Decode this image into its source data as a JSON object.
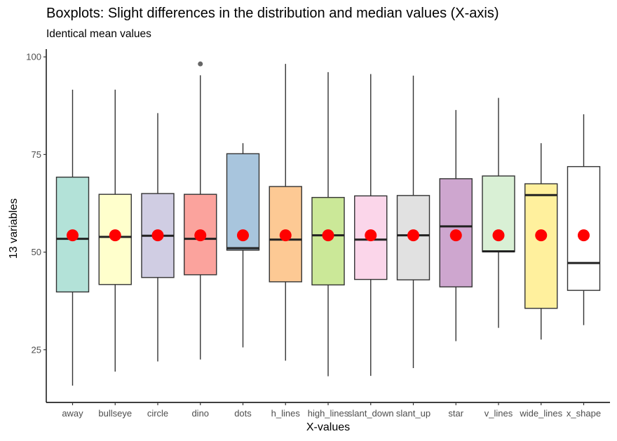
{
  "chart_data": {
    "type": "boxplot",
    "title": "Boxplots: Slight differences in the distribution and median values (X-axis)",
    "subtitle": "Identical mean values",
    "xlabel": "X-values",
    "ylabel": "13 variables",
    "ylim": [
      11.5,
      102
    ],
    "yticks": [
      25,
      50,
      75,
      100
    ],
    "grid": false,
    "legend": "none",
    "categories": [
      "away",
      "bullseye",
      "circle",
      "dino",
      "dots",
      "h_lines",
      "high_lines",
      "slant_down",
      "slant_up",
      "star",
      "v_lines",
      "wide_lines",
      "x_shape"
    ],
    "fill_colors": [
      "#b3e2d8",
      "#ffffcc",
      "#d0cde3",
      "#fba39d",
      "#a8c5dd",
      "#fdc994",
      "#cbe898",
      "#fbd6ea",
      "#e1e1e1",
      "#cea6cf",
      "#d9f0d5",
      "#fff09d",
      "#ffffff"
    ],
    "boxes": [
      {
        "name": "away",
        "whisker_low": 15.8,
        "q1": 39.8,
        "median": 53.4,
        "q3": 69.2,
        "whisker_high": 91.6,
        "outliers": []
      },
      {
        "name": "bullseye",
        "whisker_low": 19.4,
        "q1": 41.7,
        "median": 53.9,
        "q3": 64.8,
        "whisker_high": 91.6,
        "outliers": []
      },
      {
        "name": "circle",
        "whisker_low": 22.0,
        "q1": 43.5,
        "median": 54.2,
        "q3": 65.0,
        "whisker_high": 85.6,
        "outliers": []
      },
      {
        "name": "dino",
        "whisker_low": 22.5,
        "q1": 44.2,
        "median": 53.4,
        "q3": 64.8,
        "whisker_high": 95.3,
        "outliers": [
          98.2
        ]
      },
      {
        "name": "dots",
        "whisker_low": 25.6,
        "q1": 50.5,
        "median": 51.0,
        "q3": 75.2,
        "whisker_high": 77.9,
        "outliers": []
      },
      {
        "name": "h_lines",
        "whisker_low": 22.2,
        "q1": 42.4,
        "median": 53.2,
        "q3": 66.8,
        "whisker_high": 98.2,
        "outliers": []
      },
      {
        "name": "high_lines",
        "whisker_low": 18.2,
        "q1": 41.6,
        "median": 54.3,
        "q3": 64.0,
        "whisker_high": 96.1,
        "outliers": []
      },
      {
        "name": "slant_down",
        "whisker_low": 18.3,
        "q1": 43.0,
        "median": 53.2,
        "q3": 64.4,
        "whisker_high": 95.6,
        "outliers": []
      },
      {
        "name": "slant_up",
        "whisker_low": 20.3,
        "q1": 42.9,
        "median": 54.3,
        "q3": 64.5,
        "whisker_high": 95.2,
        "outliers": []
      },
      {
        "name": "star",
        "whisker_low": 27.2,
        "q1": 41.1,
        "median": 56.6,
        "q3": 68.8,
        "whisker_high": 86.4,
        "outliers": []
      },
      {
        "name": "v_lines",
        "whisker_low": 30.6,
        "q1": 50.1,
        "median": 50.2,
        "q3": 69.5,
        "whisker_high": 89.5,
        "outliers": []
      },
      {
        "name": "wide_lines",
        "whisker_low": 27.6,
        "q1": 35.6,
        "median": 64.6,
        "q3": 67.5,
        "whisker_high": 77.9,
        "outliers": []
      },
      {
        "name": "x_shape",
        "whisker_low": 31.3,
        "q1": 40.2,
        "median": 47.2,
        "q3": 71.9,
        "whisker_high": 85.3,
        "outliers": []
      }
    ],
    "mean_value": 54.3,
    "mean_marker_color": "#ff0000",
    "box_line_color": "#333333",
    "outlier_color": "#666666"
  }
}
